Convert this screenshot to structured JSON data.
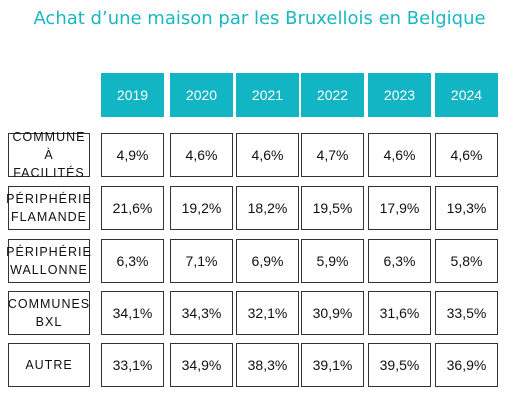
{
  "chart_data": {
    "type": "table",
    "title": "Achat d’une maison par les Bruxellois en Belgique",
    "columns": [
      "2019",
      "2020",
      "2021",
      "2022",
      "2023",
      "2024"
    ],
    "rows": [
      {
        "label": "COMMUNE À\nFACILITÉS",
        "values": [
          "4,9%",
          "4,6%",
          "4,6%",
          "4,7%",
          "4,6%",
          "4,6%"
        ]
      },
      {
        "label": "PÉRIPHÉRIE\nFLAMANDE",
        "values": [
          "21,6%",
          "19,2%",
          "18,2%",
          "19,5%",
          "17,9%",
          "19,3%"
        ]
      },
      {
        "label": "PÉRIPHÉRIE\nWALLONNE",
        "values": [
          "6,3%",
          "7,1%",
          "6,9%",
          "5,9%",
          "6,3%",
          "5,8%"
        ]
      },
      {
        "label": "COMMUNES\nBXL",
        "values": [
          "34,1%",
          "34,3%",
          "32,1%",
          "30,9%",
          "31,6%",
          "33,5%"
        ]
      },
      {
        "label": "AUTRE",
        "values": [
          "33,1%",
          "34,9%",
          "38,3%",
          "39,1%",
          "39,5%",
          "36,9%"
        ]
      }
    ],
    "header_color": "#11b5c3",
    "title_color": "#1ab7c2"
  }
}
